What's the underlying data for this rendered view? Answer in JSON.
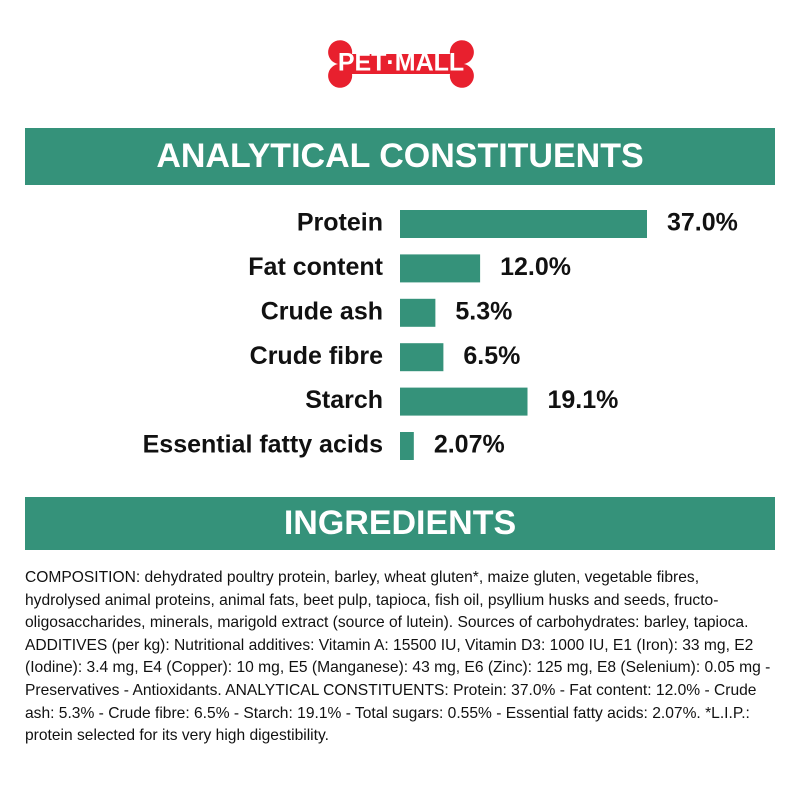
{
  "logo": "PET·MALL",
  "chart_data": {
    "type": "bar",
    "title": "ANALYTICAL CONSTITUENTS",
    "categories": [
      "Protein",
      "Fat content",
      "Crude ash",
      "Crude fibre",
      "Starch",
      "Essential fatty acids"
    ],
    "values": [
      37.0,
      12.0,
      5.3,
      6.5,
      19.1,
      2.07
    ],
    "value_labels": [
      "37.0%",
      "12.0%",
      "5.3%",
      "6.5%",
      "19.1%",
      "2.07%"
    ],
    "color": "#35927a"
  },
  "ingredients": {
    "title": "INGREDIENTS",
    "text": "COMPOSITION: dehydrated poultry protein, barley, wheat gluten*, maize gluten, vegetable fibres, hydrolysed animal proteins, animal fats, beet pulp, tapioca, fish oil, psyllium husks and seeds, fructo-oligosaccharides, minerals, marigold extract (source of lutein). Sources of carbohydrates: barley, tapioca. ADDITIVES (per kg): Nutritional additives: Vitamin A: 15500 IU, Vitamin D3: 1000 IU, E1 (Iron): 33 mg, E2 (Iodine): 3.4 mg, E4 (Copper): 10 mg, E5 (Manganese): 43 mg, E6 (Zinc): 125 mg, E8 (Selenium): 0.05 mg - Preservatives - Antioxidants. ANALYTICAL CONSTITUENTS: Protein: 37.0% - Fat content: 12.0% - Crude ash: 5.3% - Crude fibre: 6.5% - Starch: 19.1% - Total sugars: 0.55% - Essential fatty acids: 2.07%. *L.I.P.: protein selected for its very high digestibility."
  }
}
